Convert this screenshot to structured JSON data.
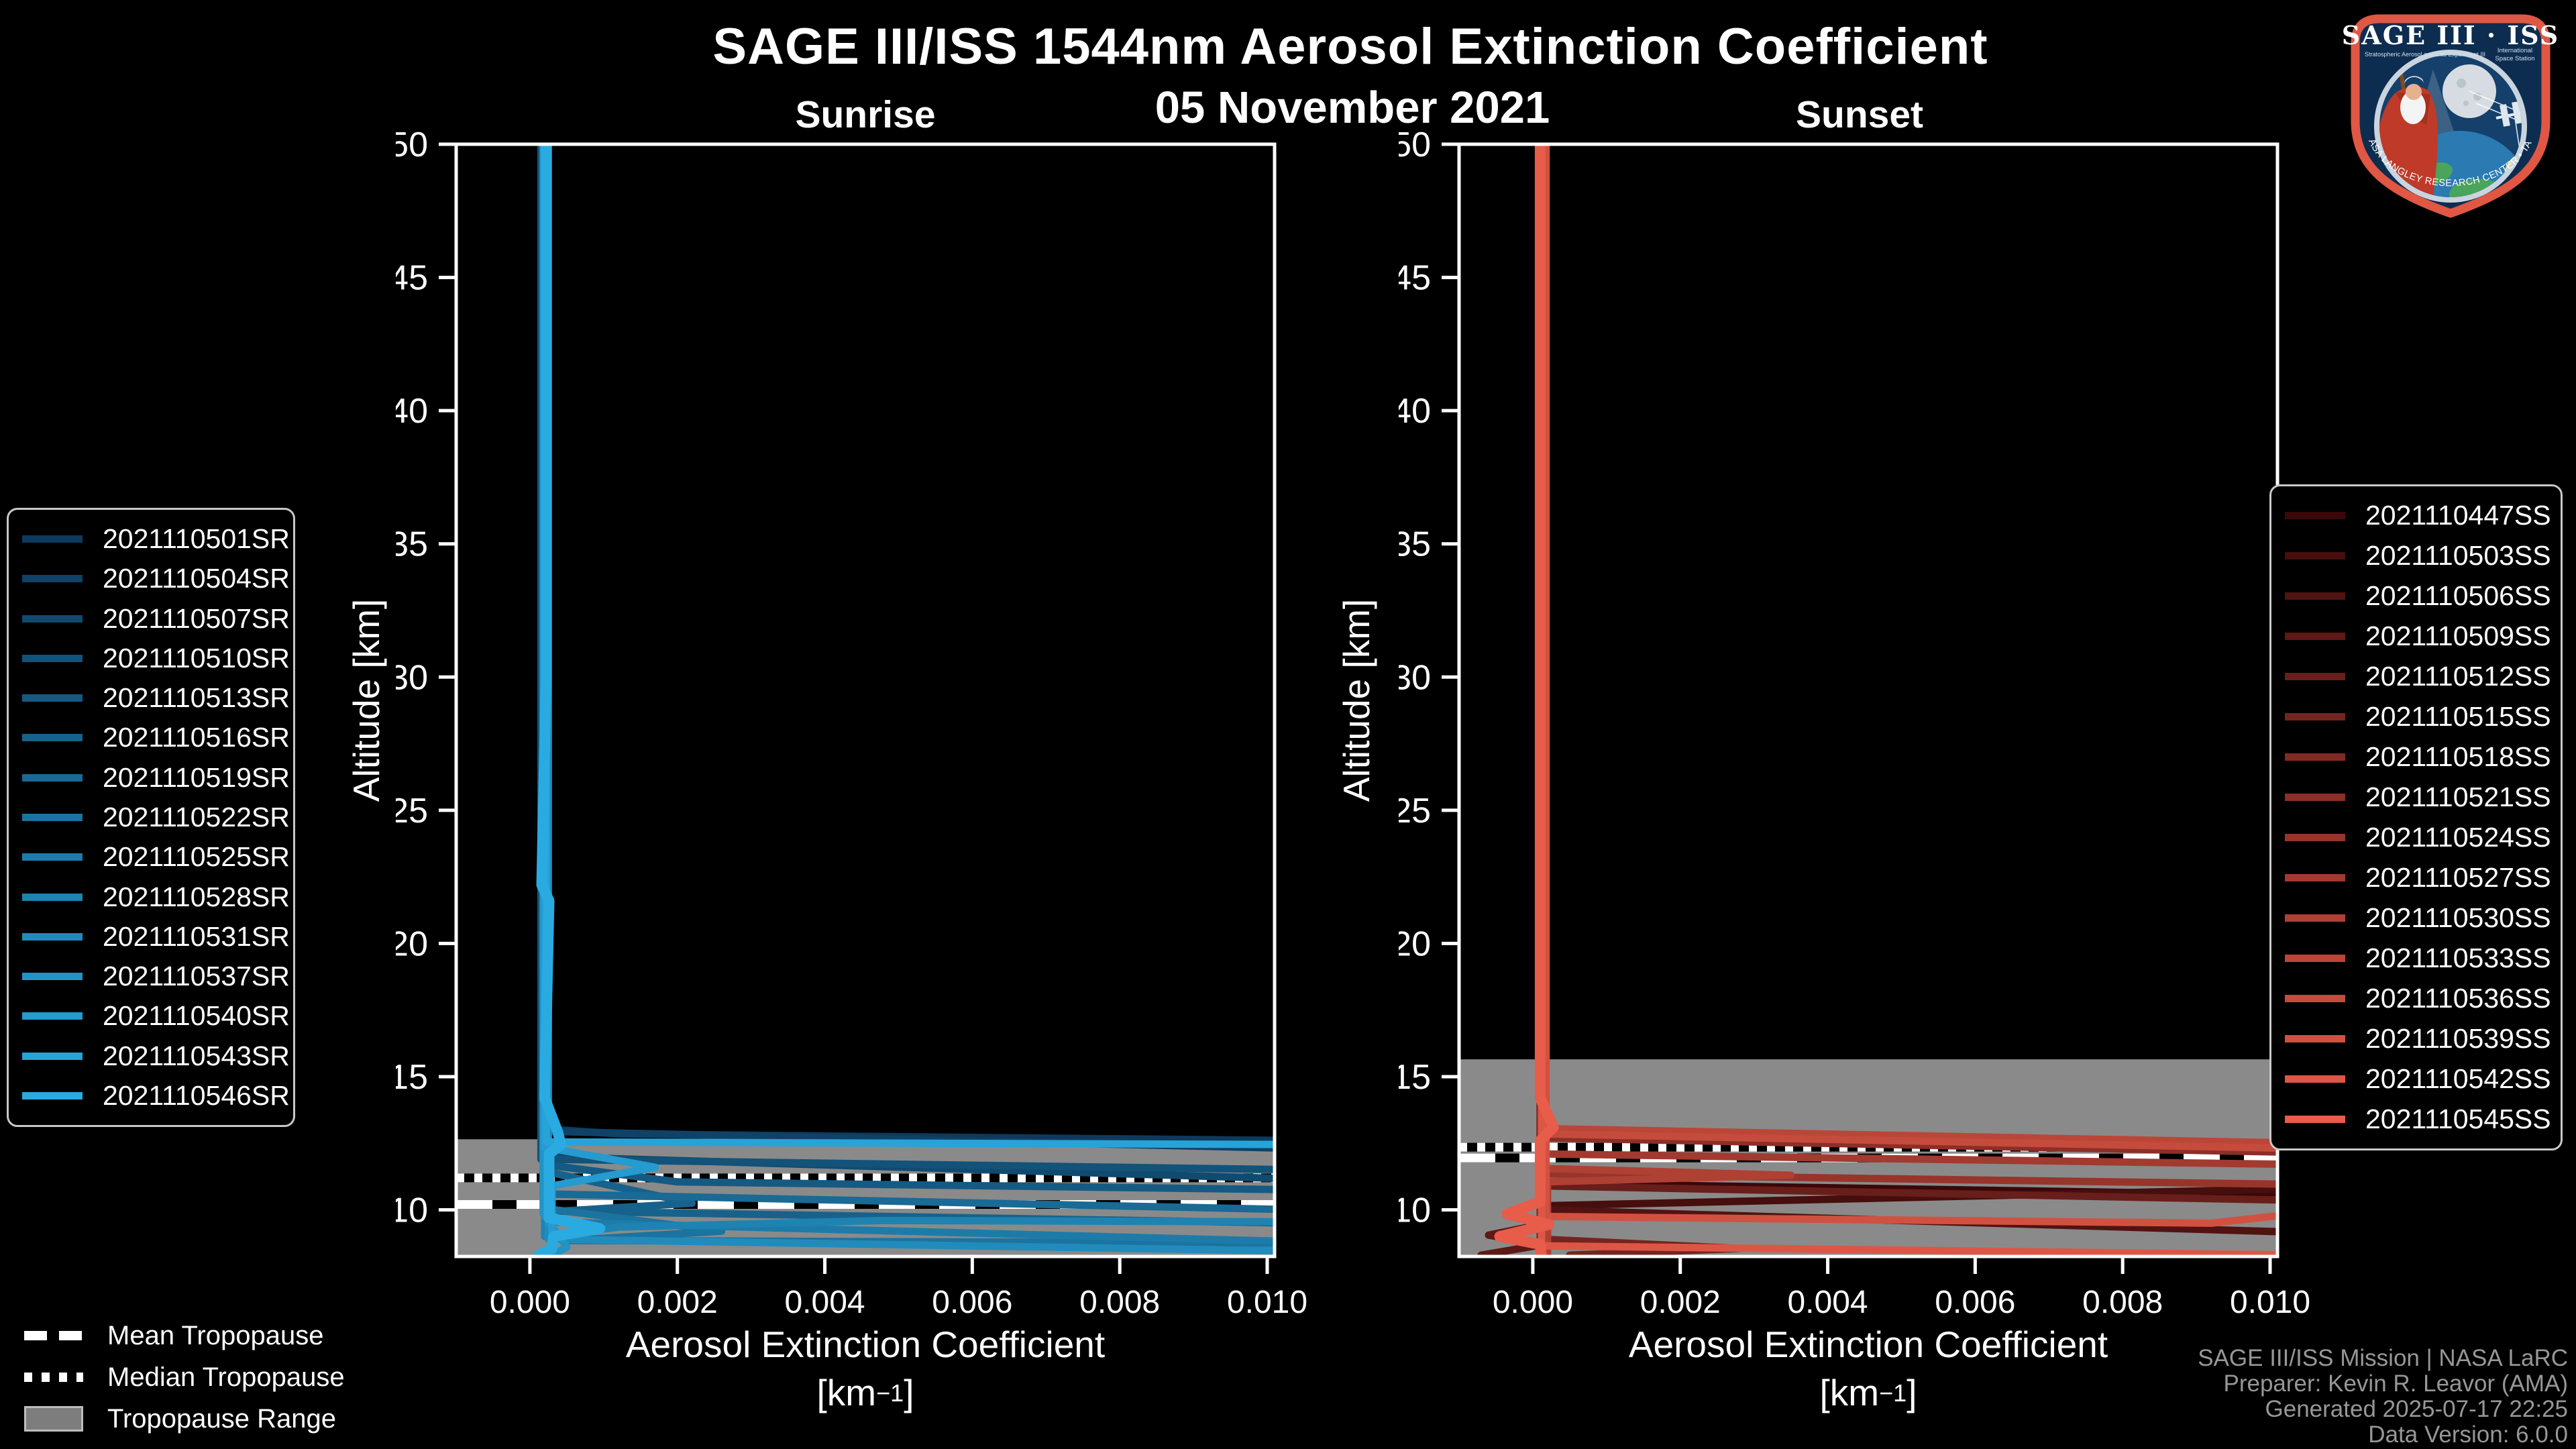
{
  "chart_data": {
    "type": "line",
    "title": "SAGE III/ISS 1544nm Aerosol Extinction Coefficient",
    "subtitle": "05 November 2021",
    "panels": [
      {
        "id": "sunrise",
        "title": "Sunrise",
        "xlabel": "Aerosol Extinction Coefficient",
        "unit_pre": "[km",
        "unit_sup": "−1",
        "unit_post": "]",
        "ylabel": "Altitude [km]",
        "xlim": [
          -0.001,
          0.0101
        ],
        "ylim": [
          8.25,
          50
        ],
        "grid": false,
        "legend_position": "outside-left",
        "xticks": [
          {
            "v": 0.0,
            "label": "0.000"
          },
          {
            "v": 0.002,
            "label": "0.002"
          },
          {
            "v": 0.004,
            "label": "0.004"
          },
          {
            "v": 0.006,
            "label": "0.006"
          },
          {
            "v": 0.008,
            "label": "0.008"
          },
          {
            "v": 0.01,
            "label": "0.010"
          }
        ],
        "yticks": [
          {
            "v": 50,
            "label": "50"
          },
          {
            "v": 45,
            "label": "45"
          },
          {
            "v": 40,
            "label": "40"
          },
          {
            "v": 35,
            "label": "35"
          },
          {
            "v": 30,
            "label": "30"
          },
          {
            "v": 25,
            "label": "25"
          },
          {
            "v": 20,
            "label": "20"
          },
          {
            "v": 15,
            "label": "15"
          },
          {
            "v": 10,
            "label": "10"
          }
        ],
        "tropopause": {
          "mean": 10.2,
          "median": 11.2,
          "range_top": 12.65,
          "range_bottom": 8.25
        },
        "series": [
          {
            "label": "2021110501SR",
            "color": "#0d3a5c",
            "points": [
              [
                0.00015,
                50
              ],
              [
                0.00015,
                13.05
              ],
              [
                0.0012,
                12.85
              ],
              [
                0.0105,
                12.6
              ]
            ]
          },
          {
            "label": "2021110504SR",
            "color": "#0f4266",
            "points": [
              [
                0.00018,
                50
              ],
              [
                0.00018,
                12.95
              ],
              [
                0.0105,
                12.3
              ]
            ]
          },
          {
            "label": "2021110507SR",
            "color": "#114a6f",
            "points": [
              [
                0.0002,
                50
              ],
              [
                0.0002,
                12.0
              ],
              [
                0.0105,
                11.15
              ]
            ]
          },
          {
            "label": "2021110510SR",
            "color": "#135279",
            "points": [
              [
                0.00015,
                50
              ],
              [
                0.00015,
                11.9
              ],
              [
                0.0105,
                11.5
              ]
            ]
          },
          {
            "label": "2021110513SR",
            "color": "#155a82",
            "points": [
              [
                0.0002,
                50
              ],
              [
                0.0002,
                11.7
              ],
              [
                0.002,
                11.05
              ],
              [
                0.0105,
                10.75
              ]
            ]
          },
          {
            "label": "2021110516SR",
            "color": "#17628c",
            "points": [
              [
                0.0002,
                50
              ],
              [
                0.0002,
                11.45
              ],
              [
                0.0022,
                10.25
              ],
              [
                0.0004,
                9.95
              ],
              [
                0.0105,
                9.5
              ]
            ]
          },
          {
            "label": "2021110519SR",
            "color": "#196a95",
            "points": [
              [
                0.00018,
                50
              ],
              [
                0.00018,
                10.6
              ],
              [
                0.0105,
                10.0
              ]
            ]
          },
          {
            "label": "2021110522SR",
            "color": "#1b739f",
            "points": [
              [
                0.0002,
                50
              ],
              [
                0.0002,
                10.05
              ],
              [
                0.0026,
                9.2
              ],
              [
                0.0005,
                8.85
              ],
              [
                0.0105,
                8.75
              ]
            ]
          },
          {
            "label": "2021110525SR",
            "color": "#1d7ba9",
            "points": [
              [
                0.00022,
                50
              ],
              [
                0.00022,
                9.55
              ],
              [
                0.0105,
                8.8
              ]
            ]
          },
          {
            "label": "2021110528SR",
            "color": "#1f83b2",
            "points": [
              [
                0.0002,
                50
              ],
              [
                0.0002,
                9.0
              ],
              [
                0.0012,
                9.35
              ],
              [
                0.0048,
                9.6
              ],
              [
                0.0105,
                9.55
              ]
            ]
          },
          {
            "label": "2021110531SR",
            "color": "#218bbc",
            "points": [
              [
                0.00025,
                50
              ],
              [
                0.00025,
                8.9
              ],
              [
                0.0105,
                8.45
              ]
            ]
          },
          {
            "label": "2021110537SR",
            "color": "#2393c5",
            "points": [
              [
                0.00018,
                50
              ],
              [
                0.00018,
                9.85
              ],
              [
                0.0005,
                8.6
              ],
              [
                0.0003,
                8.3
              ]
            ]
          },
          {
            "label": "2021110540SR",
            "color": "#259bcf",
            "points": [
              [
                0.0002,
                50
              ],
              [
                0.0002,
                12.35
              ],
              [
                0.0017,
                11.6
              ],
              [
                0.0003,
                10.9
              ],
              [
                0.0003,
                8.3
              ]
            ]
          },
          {
            "label": "2021110543SR",
            "color": "#27a3d8",
            "points": [
              [
                0.00022,
                50
              ],
              [
                0.00022,
                12.55
              ],
              [
                0.0105,
                12.45
              ]
            ]
          },
          {
            "label": "2021110546SR",
            "color": "#29abe2",
            "lw": 16,
            "points": [
              [
                0.00022,
                50
              ],
              [
                0.00022,
                30
              ],
              [
                0.00016,
                22.2
              ],
              [
                0.00026,
                21.6
              ],
              [
                0.0002,
                14.2
              ],
              [
                0.00038,
                12.9
              ],
              [
                0.00042,
                12.45
              ],
              [
                0.00026,
                12.1
              ],
              [
                0.00026,
                9.7
              ],
              [
                0.00095,
                9.3
              ],
              [
                0.00032,
                9.0
              ],
              [
                0.0003,
                8.55
              ],
              [
                0.00012,
                8.3
              ]
            ]
          }
        ]
      },
      {
        "id": "sunset",
        "title": "Sunset",
        "xlabel": "Aerosol Extinction Coefficient",
        "unit_pre": "[km",
        "unit_sup": "−1",
        "unit_post": "]",
        "ylabel": "Altitude [km]",
        "xlim": [
          -0.001,
          0.0101
        ],
        "ylim": [
          8.25,
          50
        ],
        "grid": false,
        "legend_position": "outside-right",
        "xticks": [
          {
            "v": 0.0,
            "label": "0.000"
          },
          {
            "v": 0.002,
            "label": "0.002"
          },
          {
            "v": 0.004,
            "label": "0.004"
          },
          {
            "v": 0.006,
            "label": "0.006"
          },
          {
            "v": 0.008,
            "label": "0.008"
          },
          {
            "v": 0.01,
            "label": "0.010"
          }
        ],
        "yticks": [
          {
            "v": 50,
            "label": "50"
          },
          {
            "v": 45,
            "label": "45"
          },
          {
            "v": 40,
            "label": "40"
          },
          {
            "v": 35,
            "label": "35"
          },
          {
            "v": 30,
            "label": "30"
          },
          {
            "v": 25,
            "label": "25"
          },
          {
            "v": 20,
            "label": "20"
          },
          {
            "v": 15,
            "label": "15"
          },
          {
            "v": 10,
            "label": "10"
          }
        ],
        "tropopause": {
          "mean": 11.95,
          "median": 12.35,
          "range_top": 15.65,
          "range_bottom": 8.25
        },
        "series": [
          {
            "label": "2021110447SS",
            "color": "#3a0808",
            "points": [
              [
                0.00012,
                50
              ],
              [
                0.00012,
                11.0
              ],
              [
                0.0105,
                10.55
              ]
            ]
          },
          {
            "label": "2021110503SS",
            "color": "#460e0c",
            "points": [
              [
                0.0001,
                50
              ],
              [
                0.0001,
                10.15
              ],
              [
                0.0105,
                10.8
              ]
            ]
          },
          {
            "label": "2021110506SS",
            "color": "#511311",
            "points": [
              [
                0.00012,
                50
              ],
              [
                0.00012,
                10.0
              ],
              [
                0.0105,
                9.15
              ]
            ]
          },
          {
            "label": "2021110509SS",
            "color": "#5d1915",
            "points": [
              [
                0.00012,
                50
              ],
              [
                0.00012,
                9.45
              ],
              [
                -0.0006,
                9.05
              ],
              [
                0.00015,
                8.7
              ],
              [
                -0.0007,
                8.3
              ]
            ]
          },
          {
            "label": "2021110512SS",
            "color": "#681e1a",
            "points": [
              [
                0.0001,
                50
              ],
              [
                0.0001,
                10.9
              ],
              [
                0.0105,
                10.35
              ]
            ]
          },
          {
            "label": "2021110515SS",
            "color": "#74241e",
            "points": [
              [
                0.00013,
                50
              ],
              [
                0.00013,
                8.9
              ],
              [
                0.0028,
                8.55
              ],
              [
                0.0005,
                8.3
              ]
            ]
          },
          {
            "label": "2021110518SS",
            "color": "#802a22",
            "points": [
              [
                0.0001,
                50
              ],
              [
                0.0001,
                8.45
              ]
            ]
          },
          {
            "label": "2021110521SS",
            "color": "#8b2f27",
            "points": [
              [
                0.00014,
                50
              ],
              [
                0.00014,
                12.7
              ],
              [
                0.0105,
                12.15
              ]
            ]
          },
          {
            "label": "2021110524SS",
            "color": "#97352b",
            "points": [
              [
                0.00012,
                50
              ],
              [
                0.00012,
                11.35
              ],
              [
                0.0105,
                10.95
              ]
            ]
          },
          {
            "label": "2021110527SS",
            "color": "#a23a30",
            "points": [
              [
                0.00013,
                50
              ],
              [
                0.00013,
                12.1
              ],
              [
                0.0105,
                11.7
              ]
            ]
          },
          {
            "label": "2021110530SS",
            "color": "#ae4034",
            "points": [
              [
                0.00015,
                50
              ],
              [
                0.00015,
                11.55
              ],
              [
                0.0035,
                11.3
              ],
              [
                0.0002,
                11.05
              ],
              [
                0.0002,
                8.3
              ]
            ]
          },
          {
            "label": "2021110533SS",
            "color": "#ba4638",
            "points": [
              [
                0.00015,
                50
              ],
              [
                0.00015,
                13.05
              ],
              [
                0.0105,
                12.5
              ]
            ]
          },
          {
            "label": "2021110536SS",
            "color": "#c54b3d",
            "points": [
              [
                0.00015,
                50
              ],
              [
                0.00015,
                12.85
              ],
              [
                0.0105,
                12.3
              ]
            ]
          },
          {
            "label": "2021110539SS",
            "color": "#d15141",
            "points": [
              [
                0.00018,
                50
              ],
              [
                0.00018,
                9.75
              ],
              [
                0.0092,
                9.5
              ],
              [
                0.0105,
                9.9
              ]
            ]
          },
          {
            "label": "2021110542SS",
            "color": "#dc5646",
            "points": [
              [
                0.00012,
                50
              ],
              [
                0.00012,
                8.65
              ],
              [
                0.0105,
                8.3
              ]
            ]
          },
          {
            "label": "2021110545SS",
            "color": "#e85c4a",
            "lw": 16,
            "points": [
              [
                0.0001,
                50
              ],
              [
                0.0001,
                14.2
              ],
              [
                0.00028,
                13.1
              ],
              [
                0.0001,
                12.6
              ],
              [
                0.0001,
                10.3
              ],
              [
                -0.00035,
                9.85
              ],
              [
                0.00022,
                9.45
              ],
              [
                -0.00045,
                9.0
              ],
              [
                0.0001,
                8.7
              ],
              [
                0.00012,
                8.25
              ]
            ]
          }
        ]
      }
    ],
    "colors": {
      "background": "#000000",
      "axis": "#ffffff",
      "tropopause_band": "#8a8a8a",
      "sunrise_bright": "#29abe2",
      "sunset_bright": "#e85c4a"
    }
  },
  "tropopause_legend": {
    "mean": "Mean Tropopause",
    "median": "Median Tropopause",
    "range": "Tropopause Range"
  },
  "attribution": {
    "line1": "SAGE III/ISS Mission | NASA LaRC",
    "line2": "Preparer: Kevin R. Leavor (AMA)",
    "line3": "Generated 2025-07-17 22:25",
    "line4": "Data Version: 6.0.0"
  },
  "logo": {
    "title": "SAGE III · ISS",
    "sub_left": "Stratospheric Aerosol and Gas Experiment III",
    "sub_right_1": "International",
    "sub_right_2": "Space Station",
    "ring": "BALL • NASA LANGLEY RESEARCH CENTER • TAS-I • ESA"
  }
}
